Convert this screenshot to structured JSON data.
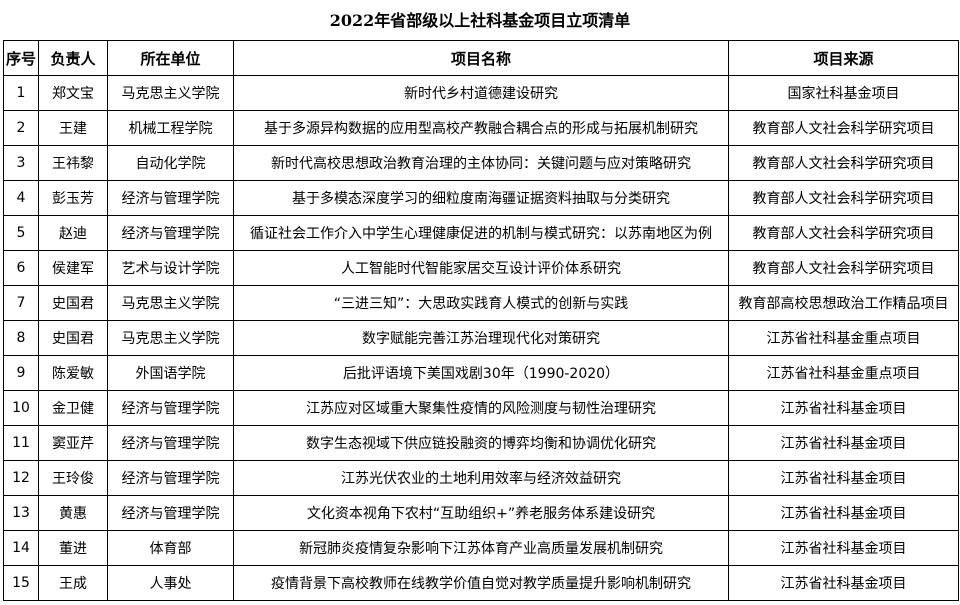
{
  "title": "2022年省部级以上社科基金项目立项清单",
  "headers": [
    "序号",
    "负责人",
    "所在单位",
    "项目名称",
    "项目来源"
  ],
  "rows": [
    [
      "1",
      "郑文宝",
      "马克思主义学院",
      "新时代乡村道德建设研究",
      "国家社科基金项目"
    ],
    [
      "2",
      "王建",
      "机械工程学院",
      "基于多源异构数据的应用型高校产教融合耦合点的形成与拓展机制研究",
      "教育部人文社会科学研究项目"
    ],
    [
      "3",
      "王祎黎",
      "自动化学院",
      "新时代高校思想政治教育治理的主体协同：关键问题与应对策略研究",
      "教育部人文社会科学研究项目"
    ],
    [
      "4",
      "彭玉芳",
      "经济与管理学院",
      "基于多模态深度学习的细粒度南海疆证据资料抽取与分类研究",
      "教育部人文社会科学研究项目"
    ],
    [
      "5",
      "赵迪",
      "经济与管理学院",
      "循证社会工作介入中学生心理健康促进的机制与模式研究：以苏南地区为例",
      "教育部人文社会科学研究项目"
    ],
    [
      "6",
      "侯建军",
      "艺术与设计学院",
      "人工智能时代智能家居交互设计评价体系研究",
      "教育部人文社会科学研究项目"
    ],
    [
      "7",
      "史国君",
      "马克思主义学院",
      "“三进三知”：大思政实践育人模式的创新与实践",
      "教育部高校思想政治工作精品项目"
    ],
    [
      "8",
      "史国君",
      "马克思主义学院",
      "数字赋能完善江苏治理现代化对策研究",
      "江苏省社科基金重点项目"
    ],
    [
      "9",
      "陈爱敏",
      "外国语学院",
      "后批评语境下美国戏剧30年（1990-2020）",
      "江苏省社科基金重点项目"
    ],
    [
      "10",
      "金卫健",
      "经济与管理学院",
      "江苏应对区域重大聚集性疫情的风险测度与韧性治理研究",
      "江苏省社科基金项目"
    ],
    [
      "11",
      "窦亚芹",
      "经济与管理学院",
      "数字生态视域下供应链投融资的博弈均衡和协调优化研究",
      "江苏省社科基金项目"
    ],
    [
      "12",
      "王玲俊",
      "经济与管理学院",
      "江苏光伏农业的土地利用效率与经济效益研究",
      "江苏省社科基金项目"
    ],
    [
      "13",
      "黄惠",
      "经济与管理学院",
      "文化资本视角下农村“互助组织+”养老服务体系建设研究",
      "江苏省社科基金项目"
    ],
    [
      "14",
      "董进",
      "体育部",
      "新冠肺炎疫情复杂影响下江苏体育产业高质量发展机制研究",
      "江苏省社科基金项目"
    ],
    [
      "15",
      "王成",
      "人事处",
      "疫情背景下高校教师在线教学价值自觉对教学质量提升影响机制研究",
      "江苏省社科基金项目"
    ]
  ]
}
